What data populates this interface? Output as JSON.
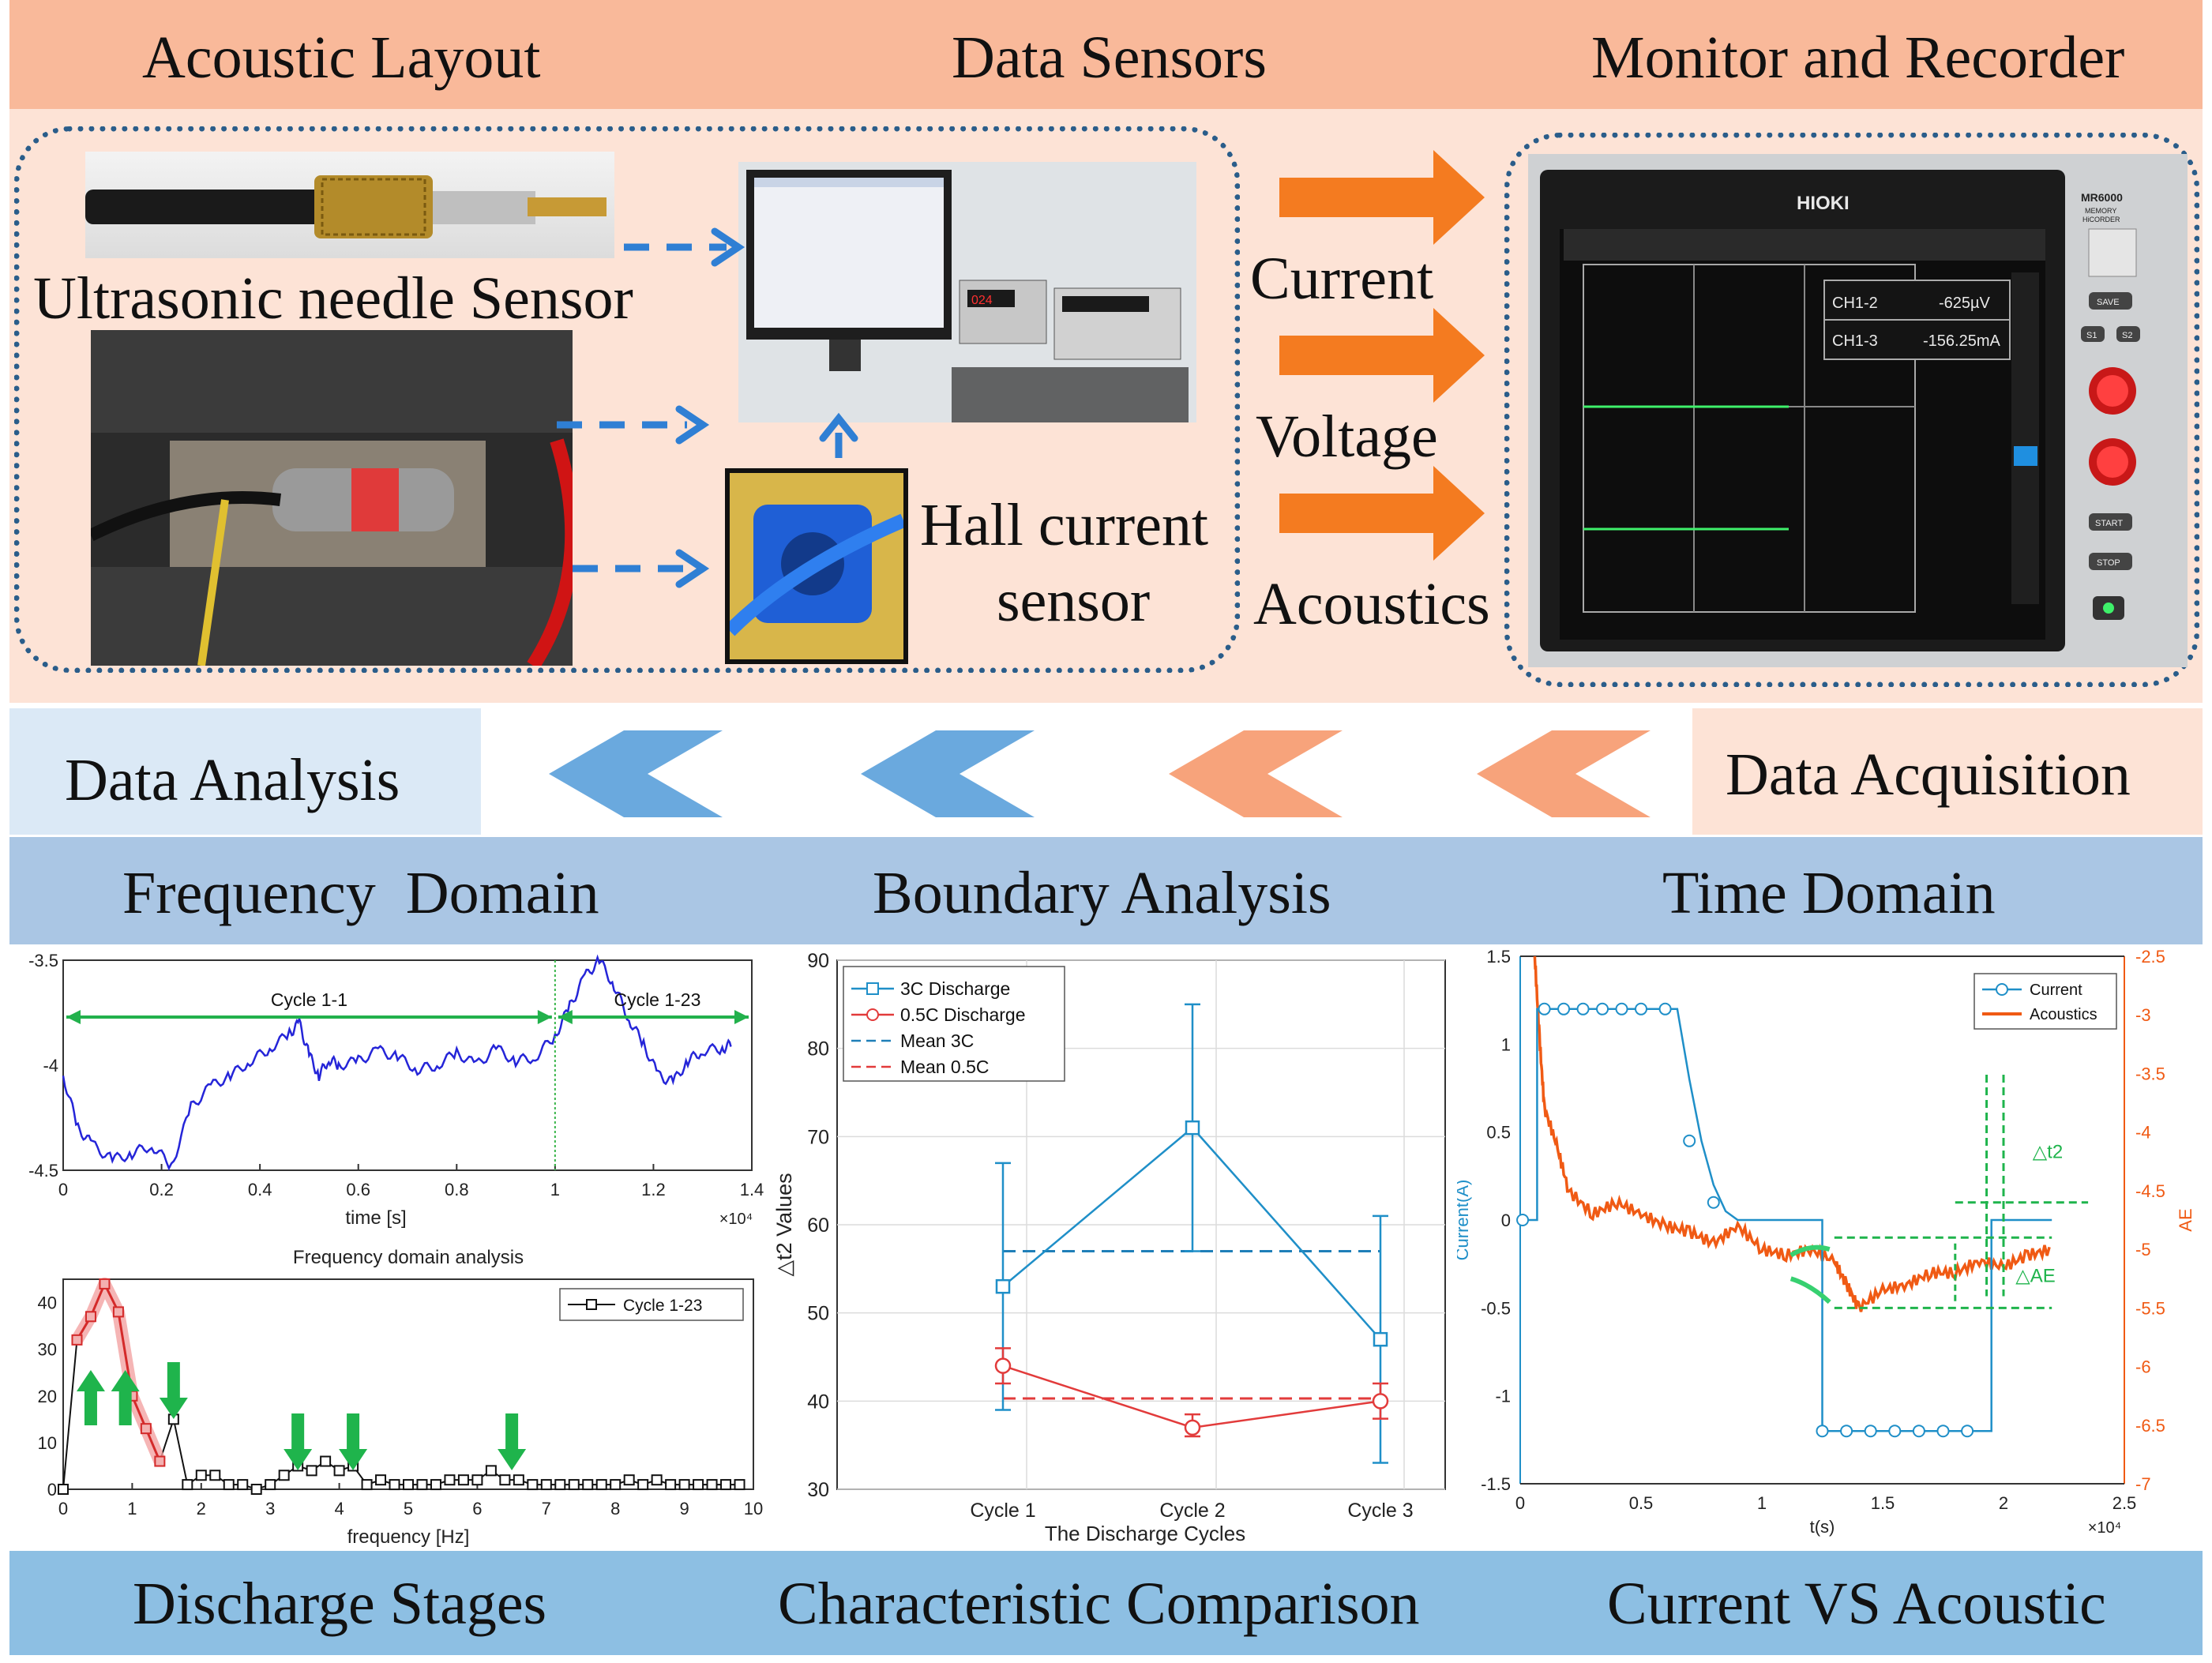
{
  "top_headers": {
    "acoustic_layout": "Acoustic Layout",
    "data_sensors": "Data Sensors",
    "monitor_recorder": "Monitor and Recorder"
  },
  "sensors": {
    "needle": "Ultrasonic needle Sensor",
    "hall_line1": "Hall current",
    "hall_line2": "sensor"
  },
  "signals": [
    "Current",
    "Voltage",
    "Acoustics"
  ],
  "recorder": {
    "brand": "HIOKI",
    "model": "MR6000",
    "model_sub1": "MEMORY",
    "model_sub2": "HiCORDER",
    "ch1_label": "CH1-2",
    "ch1_value": "-625µV",
    "ch2_label": "CH1-3",
    "ch2_value": "-156.25mA",
    "buttons": [
      "SAVE",
      "S1",
      "S2",
      "START",
      "STOP"
    ]
  },
  "flow": {
    "left": "Data Analysis",
    "right": "Data Acquisition"
  },
  "section_headers": {
    "freq": "Frequency  Domain",
    "boundary": "Boundary Analysis",
    "time": "Time Domain"
  },
  "bottom_headers": {
    "stages": "Discharge Stages",
    "comparison": "Characteristic Comparison",
    "current_vs": "Current VS Acoustic"
  },
  "colors": {
    "top_band": "#f9b99a",
    "top_bg": "#fde3d6",
    "mid_band": "#aac6e4",
    "bottom_band": "#8dbfe3",
    "arrow_orange": "#f47b20",
    "arrow_blue": "#2f7fd4"
  },
  "chart_data": [
    {
      "type": "line",
      "xlabel": "time [s]",
      "x_multiplier": "×10⁴",
      "xlim": [
        0,
        1.4
      ],
      "ylim": [
        -4.5,
        -3.5
      ],
      "xticks": [
        "0",
        "0.2",
        "0.4",
        "0.6",
        "0.8",
        "1",
        "1.2",
        "1.4"
      ],
      "yticks": [
        "-3.5",
        "-4",
        "-4.5"
      ],
      "annotations": [
        "Cycle 1-1",
        "Cycle 1-23"
      ],
      "cycle_boundary_x": 1.0,
      "series": [
        {
          "x": [
            0,
            0.03,
            0.06,
            0.1,
            0.14,
            0.18,
            0.22,
            0.26,
            0.3,
            0.34,
            0.38,
            0.42,
            0.46,
            0.48,
            0.5,
            0.52,
            0.54,
            0.56,
            0.6,
            0.64,
            0.68,
            0.72,
            0.76,
            0.8,
            0.84,
            0.88,
            0.92,
            0.96,
            1.0,
            1.03,
            1.06,
            1.09,
            1.12,
            1.15,
            1.18,
            1.21,
            1.24,
            1.27,
            1.3,
            1.34,
            1.36
          ],
          "y": [
            -4.05,
            -4.3,
            -4.38,
            -4.45,
            -4.42,
            -4.38,
            -4.48,
            -4.2,
            -4.1,
            -4.05,
            -3.98,
            -3.92,
            -3.85,
            -3.8,
            -3.95,
            -4.05,
            -3.97,
            -4.0,
            -3.98,
            -3.93,
            -3.96,
            -4.02,
            -4.0,
            -3.94,
            -4.0,
            -3.92,
            -3.98,
            -3.96,
            -3.86,
            -3.72,
            -3.58,
            -3.5,
            -3.62,
            -3.78,
            -3.9,
            -4.05,
            -4.08,
            -3.98,
            -3.93,
            -3.92,
            -3.9
          ]
        }
      ]
    },
    {
      "type": "line",
      "title": "Frequency domain analysis",
      "xlabel": "frequency [Hz]",
      "xlim": [
        0,
        10
      ],
      "ylim": [
        0,
        45
      ],
      "xticks": [
        "0",
        "1",
        "2",
        "3",
        "4",
        "5",
        "6",
        "7",
        "8",
        "9",
        "10"
      ],
      "yticks": [
        "0",
        "10",
        "20",
        "30",
        "40"
      ],
      "legend": "Cycle 1-23",
      "series": [
        {
          "name": "Cycle 1-23",
          "x": [
            0,
            0.2,
            0.4,
            0.6,
            0.8,
            1.0,
            1.2,
            1.4,
            1.6,
            1.8,
            2.0,
            2.2,
            2.4,
            2.6,
            2.8,
            3.0,
            3.2,
            3.4,
            3.6,
            3.8,
            4.0,
            4.2,
            4.4,
            4.6,
            4.8,
            5.0,
            5.2,
            5.4,
            5.6,
            5.8,
            6.0,
            6.2,
            6.4,
            6.6,
            6.8,
            7.0,
            7.2,
            7.4,
            7.6,
            7.8,
            8.0,
            8.2,
            8.4,
            8.6,
            8.8,
            9.0,
            9.2,
            9.4,
            9.6,
            9.8
          ],
          "y": [
            0,
            32,
            37,
            44,
            38,
            20,
            13,
            6,
            15,
            1,
            3,
            3,
            1,
            1,
            0,
            1,
            3,
            5,
            4,
            6,
            4,
            5,
            1,
            2,
            1,
            1,
            1,
            1,
            2,
            2,
            2,
            4,
            2,
            2,
            1,
            1,
            1,
            1,
            1,
            1,
            1,
            2,
            1,
            2,
            1,
            1,
            1,
            1,
            1,
            1
          ]
        }
      ]
    },
    {
      "type": "line",
      "xlabel": "The Discharge Cycles",
      "ylabel": "△t2 Values",
      "categories": [
        "Cycle 1",
        "Cycle 2",
        "Cycle 3"
      ],
      "ylim": [
        30,
        90
      ],
      "yticks": [
        "30",
        "40",
        "50",
        "60",
        "70",
        "80",
        "90"
      ],
      "series": [
        {
          "name": "3C Discharge",
          "values": [
            53,
            71,
            47
          ],
          "err_low": [
            39,
            57,
            33
          ],
          "err_high": [
            67,
            85,
            61
          ]
        },
        {
          "name": "0.5C Discharge",
          "values": [
            44,
            37,
            40
          ],
          "err_low": [
            42,
            36,
            38
          ],
          "err_high": [
            46,
            38.5,
            42
          ]
        },
        {
          "name": "Mean 3C",
          "values": [
            57,
            57,
            57
          ]
        },
        {
          "name": "Mean 0.5C",
          "values": [
            40.3,
            40.3,
            40.3
          ]
        }
      ]
    },
    {
      "type": "line",
      "xlabel": "t(s)",
      "x_multiplier": "×10⁴",
      "ylabel": "Current(A)",
      "ylabel_right": "AE",
      "xlim": [
        0,
        2.5
      ],
      "ylim": [
        -1.5,
        1.5
      ],
      "ylim_right": [
        -7,
        -2.5
      ],
      "xticks": [
        "0",
        "0.5",
        "1",
        "1.5",
        "2",
        "2.5"
      ],
      "yticks": [
        "1.5",
        "1",
        "0.5",
        "0",
        "-0.5",
        "-1",
        "-1.5"
      ],
      "yticks_right": [
        "-2.5",
        "-3",
        "-3.5",
        "-4",
        "-4.5",
        "-5",
        "-5.5",
        "-6",
        "-6.5",
        "-7"
      ],
      "annotations": [
        "△t2",
        "△AE"
      ],
      "series": [
        {
          "name": "Current",
          "x": [
            0,
            0.07,
            0.07,
            0.65,
            0.7,
            0.75,
            0.8,
            0.85,
            0.9,
            1.25,
            1.25,
            1.95,
            1.95,
            2.2
          ],
          "y": [
            0,
            0,
            1.2,
            1.2,
            0.8,
            0.45,
            0.2,
            0.05,
            0,
            0,
            -1.2,
            -1.2,
            0,
            0
          ]
        },
        {
          "name": "Acoustics",
          "x": [
            0.06,
            0.08,
            0.1,
            0.15,
            0.2,
            0.3,
            0.4,
            0.5,
            0.6,
            0.7,
            0.8,
            0.9,
            1.0,
            1.1,
            1.2,
            1.3,
            1.35,
            1.4,
            1.5,
            1.6,
            1.7,
            1.8,
            1.9,
            2.0,
            2.1,
            2.2
          ],
          "y": [
            -2.5,
            -3.2,
            -3.8,
            -4.1,
            -4.5,
            -4.7,
            -4.6,
            -4.7,
            -4.8,
            -4.85,
            -4.95,
            -4.8,
            -5.0,
            -5.05,
            -5.0,
            -5.1,
            -5.3,
            -5.5,
            -5.35,
            -5.3,
            -5.2,
            -5.2,
            -5.1,
            -5.15,
            -5.05,
            -5.0
          ]
        }
      ]
    }
  ]
}
